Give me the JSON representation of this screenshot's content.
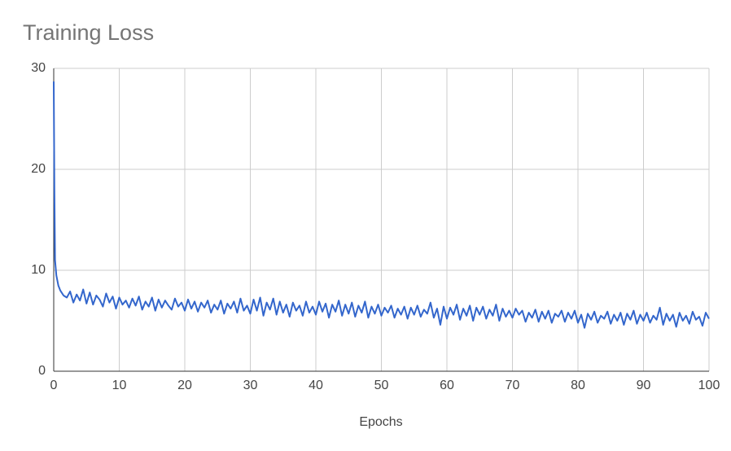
{
  "chart_data": {
    "type": "line",
    "title": "Training Loss",
    "x_label": "Epochs",
    "color": "#3366cc",
    "grid": true,
    "xlim": [
      0,
      100
    ],
    "ylim": [
      0,
      30
    ],
    "xticks": [
      0,
      10,
      20,
      30,
      40,
      50,
      60,
      70,
      80,
      90,
      100
    ],
    "yticks": [
      0,
      10,
      20,
      30
    ],
    "x": [
      0,
      0.1,
      0.2,
      0.4,
      0.7,
      1,
      1.5,
      2,
      2.5,
      3,
      3.5,
      4,
      4.5,
      5,
      5.5,
      6,
      6.5,
      7,
      7.5,
      8,
      8.5,
      9,
      9.5,
      10,
      10.5,
      11,
      11.5,
      12,
      12.5,
      13,
      13.5,
      14,
      14.5,
      15,
      15.5,
      16,
      16.5,
      17,
      17.5,
      18,
      18.5,
      19,
      19.5,
      20,
      20.5,
      21,
      21.5,
      22,
      22.5,
      23,
      23.5,
      24,
      24.5,
      25,
      25.5,
      26,
      26.5,
      27,
      27.5,
      28,
      28.5,
      29,
      29.5,
      30,
      30.5,
      31,
      31.5,
      32,
      32.5,
      33,
      33.5,
      34,
      34.5,
      35,
      35.5,
      36,
      36.5,
      37,
      37.5,
      38,
      38.5,
      39,
      39.5,
      40,
      40.5,
      41,
      41.5,
      42,
      42.5,
      43,
      43.5,
      44,
      44.5,
      45,
      45.5,
      46,
      46.5,
      47,
      47.5,
      48,
      48.5,
      49,
      49.5,
      50,
      50.5,
      51,
      51.5,
      52,
      52.5,
      53,
      53.5,
      54,
      54.5,
      55,
      55.5,
      56,
      56.5,
      57,
      57.5,
      58,
      58.5,
      59,
      59.5,
      60,
      60.5,
      61,
      61.5,
      62,
      62.5,
      63,
      63.5,
      64,
      64.5,
      65,
      65.5,
      66,
      66.5,
      67,
      67.5,
      68,
      68.5,
      69,
      69.5,
      70,
      70.5,
      71,
      71.5,
      72,
      72.5,
      73,
      73.5,
      74,
      74.5,
      75,
      75.5,
      76,
      76.5,
      77,
      77.5,
      78,
      78.5,
      79,
      79.5,
      80,
      80.5,
      81,
      81.5,
      82,
      82.5,
      83,
      83.5,
      84,
      84.5,
      85,
      85.5,
      86,
      86.5,
      87,
      87.5,
      88,
      88.5,
      89,
      89.5,
      90,
      90.5,
      91,
      91.5,
      92,
      92.5,
      93,
      93.5,
      94,
      94.5,
      95,
      95.5,
      96,
      96.5,
      97,
      97.5,
      98,
      98.5,
      99,
      99.5,
      100
    ],
    "values": [
      28.7,
      18,
      11,
      9.5,
      8.5,
      8.0,
      7.5,
      7.3,
      7.9,
      6.8,
      7.6,
      7.0,
      8.1,
      6.7,
      7.8,
      6.6,
      7.5,
      7.1,
      6.4,
      7.7,
      6.8,
      7.4,
      6.2,
      7.3,
      6.6,
      7.0,
      6.3,
      7.2,
      6.5,
      7.4,
      6.1,
      6.9,
      6.4,
      7.3,
      6.0,
      7.1,
      6.3,
      7.0,
      6.5,
      6.1,
      7.2,
      6.4,
      6.8,
      6.0,
      7.1,
      6.2,
      6.9,
      5.9,
      6.8,
      6.3,
      7.0,
      5.8,
      6.6,
      6.1,
      7.0,
      5.7,
      6.7,
      6.2,
      6.9,
      5.8,
      7.2,
      6.0,
      6.5,
      5.7,
      7.1,
      6.0,
      7.3,
      5.5,
      6.8,
      6.1,
      7.2,
      5.6,
      6.9,
      5.8,
      6.6,
      5.4,
      6.8,
      6.0,
      6.5,
      5.5,
      6.9,
      5.8,
      6.4,
      5.6,
      6.9,
      5.9,
      6.7,
      5.3,
      6.6,
      5.9,
      7.0,
      5.5,
      6.6,
      5.7,
      6.8,
      5.4,
      6.5,
      5.8,
      6.9,
      5.3,
      6.4,
      5.7,
      6.6,
      5.5,
      6.3,
      5.8,
      6.5,
      5.3,
      6.2,
      5.6,
      6.4,
      5.2,
      6.3,
      5.6,
      6.5,
      5.4,
      6.1,
      5.7,
      6.8,
      5.3,
      6.2,
      4.6,
      6.4,
      5.2,
      6.3,
      5.6,
      6.6,
      5.1,
      6.2,
      5.5,
      6.5,
      5.0,
      6.3,
      5.6,
      6.4,
      5.2,
      6.1,
      5.5,
      6.6,
      5.0,
      6.2,
      5.4,
      6.0,
      5.3,
      6.2,
      5.6,
      6.0,
      4.9,
      5.8,
      5.3,
      6.1,
      4.9,
      5.9,
      5.2,
      6.0,
      4.8,
      5.7,
      5.4,
      6.0,
      4.9,
      5.8,
      5.2,
      6.0,
      4.8,
      5.6,
      4.3,
      5.7,
      5.1,
      5.9,
      4.8,
      5.5,
      5.2,
      5.9,
      4.7,
      5.6,
      5.0,
      5.8,
      4.6,
      5.7,
      5.1,
      6.0,
      4.7,
      5.6,
      5.0,
      5.8,
      4.8,
      5.5,
      5.1,
      6.3,
      4.6,
      5.7,
      5.0,
      5.6,
      4.4,
      5.8,
      5.0,
      5.5,
      4.7,
      5.9,
      5.1,
      5.4,
      4.5,
      5.8,
      5.2
    ]
  }
}
